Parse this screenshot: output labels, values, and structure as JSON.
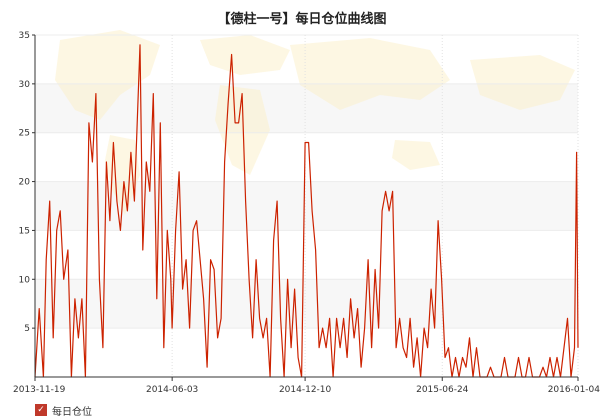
{
  "chart_data": {
    "type": "line",
    "title": "【德柱一号】每日仓位曲线图",
    "xlabel": "",
    "ylabel": "",
    "ylim": [
      0,
      35
    ],
    "y_ticks": [
      5,
      10,
      15,
      20,
      25,
      30,
      35
    ],
    "x_ticks": [
      "2013-11-19",
      "2014-06-03",
      "2014-12-10",
      "2015-06-24",
      "2016-01-04"
    ],
    "x_range": [
      "2013-11-19",
      "2016-01-04"
    ],
    "grid": true,
    "legend": "bottom-left",
    "series": [
      {
        "name": "每日仓位",
        "color": "#cc2200",
        "points": [
          [
            "2013-11-19",
            0
          ],
          [
            "2013-11-25",
            7
          ],
          [
            "2013-12-01",
            0
          ],
          [
            "2013-12-05",
            12
          ],
          [
            "2013-12-10",
            18
          ],
          [
            "2013-12-15",
            4
          ],
          [
            "2013-12-20",
            15
          ],
          [
            "2013-12-25",
            17
          ],
          [
            "2013-12-30",
            10
          ],
          [
            "2014-01-05",
            13
          ],
          [
            "2014-01-10",
            0
          ],
          [
            "2014-01-15",
            8
          ],
          [
            "2014-01-20",
            4
          ],
          [
            "2014-01-25",
            8
          ],
          [
            "2014-01-30",
            0
          ],
          [
            "2014-02-04",
            26
          ],
          [
            "2014-02-09",
            22
          ],
          [
            "2014-02-14",
            29
          ],
          [
            "2014-02-19",
            10
          ],
          [
            "2014-02-24",
            3
          ],
          [
            "2014-03-01",
            22
          ],
          [
            "2014-03-06",
            16
          ],
          [
            "2014-03-11",
            24
          ],
          [
            "2014-03-16",
            18
          ],
          [
            "2014-03-21",
            15
          ],
          [
            "2014-03-26",
            20
          ],
          [
            "2014-03-31",
            17
          ],
          [
            "2014-04-05",
            23
          ],
          [
            "2014-04-10",
            18
          ],
          [
            "2014-04-15",
            28
          ],
          [
            "2014-04-18",
            34
          ],
          [
            "2014-04-22",
            13
          ],
          [
            "2014-04-27",
            22
          ],
          [
            "2014-05-02",
            19
          ],
          [
            "2014-05-07",
            29
          ],
          [
            "2014-05-12",
            8
          ],
          [
            "2014-05-17",
            26
          ],
          [
            "2014-05-22",
            3
          ],
          [
            "2014-05-27",
            15
          ],
          [
            "2014-06-01",
            10
          ],
          [
            "2014-06-03",
            5
          ],
          [
            "2014-06-08",
            15
          ],
          [
            "2014-06-13",
            21
          ],
          [
            "2014-06-18",
            9
          ],
          [
            "2014-06-23",
            12
          ],
          [
            "2014-06-28",
            5
          ],
          [
            "2014-07-03",
            15
          ],
          [
            "2014-07-08",
            16
          ],
          [
            "2014-07-13",
            12
          ],
          [
            "2014-07-18",
            8
          ],
          [
            "2014-07-23",
            1
          ],
          [
            "2014-07-28",
            12
          ],
          [
            "2014-08-02",
            11
          ],
          [
            "2014-08-07",
            4
          ],
          [
            "2014-08-12",
            6
          ],
          [
            "2014-08-17",
            22
          ],
          [
            "2014-08-22",
            28
          ],
          [
            "2014-08-27",
            33
          ],
          [
            "2014-09-01",
            26
          ],
          [
            "2014-09-06",
            26
          ],
          [
            "2014-09-11",
            29
          ],
          [
            "2014-09-16",
            18
          ],
          [
            "2014-09-21",
            10
          ],
          [
            "2014-09-26",
            4
          ],
          [
            "2014-10-01",
            12
          ],
          [
            "2014-10-06",
            6
          ],
          [
            "2014-10-11",
            4
          ],
          [
            "2014-10-16",
            6
          ],
          [
            "2014-10-21",
            0
          ],
          [
            "2014-10-26",
            14
          ],
          [
            "2014-10-31",
            18
          ],
          [
            "2014-11-05",
            6
          ],
          [
            "2014-11-10",
            0
          ],
          [
            "2014-11-15",
            10
          ],
          [
            "2014-11-20",
            3
          ],
          [
            "2014-11-25",
            9
          ],
          [
            "2014-11-30",
            2
          ],
          [
            "2014-12-05",
            0
          ],
          [
            "2014-12-10",
            24
          ],
          [
            "2014-12-15",
            24
          ],
          [
            "2014-12-20",
            17
          ],
          [
            "2014-12-25",
            13
          ],
          [
            "2014-12-30",
            3
          ],
          [
            "2015-01-04",
            5
          ],
          [
            "2015-01-09",
            3
          ],
          [
            "2015-01-14",
            6
          ],
          [
            "2015-01-19",
            0
          ],
          [
            "2015-01-24",
            6
          ],
          [
            "2015-01-29",
            3
          ],
          [
            "2015-02-03",
            6
          ],
          [
            "2015-02-08",
            2
          ],
          [
            "2015-02-13",
            8
          ],
          [
            "2015-02-18",
            4
          ],
          [
            "2015-02-23",
            7
          ],
          [
            "2015-02-28",
            1
          ],
          [
            "2015-03-05",
            5
          ],
          [
            "2015-03-10",
            12
          ],
          [
            "2015-03-15",
            3
          ],
          [
            "2015-03-20",
            11
          ],
          [
            "2015-03-25",
            5
          ],
          [
            "2015-03-30",
            17
          ],
          [
            "2015-04-04",
            19
          ],
          [
            "2015-04-09",
            17
          ],
          [
            "2015-04-14",
            19
          ],
          [
            "2015-04-19",
            3
          ],
          [
            "2015-04-24",
            6
          ],
          [
            "2015-04-29",
            3
          ],
          [
            "2015-05-04",
            2
          ],
          [
            "2015-05-09",
            6
          ],
          [
            "2015-05-14",
            1
          ],
          [
            "2015-05-19",
            4
          ],
          [
            "2015-05-24",
            0
          ],
          [
            "2015-05-29",
            5
          ],
          [
            "2015-06-03",
            3
          ],
          [
            "2015-06-08",
            9
          ],
          [
            "2015-06-13",
            5
          ],
          [
            "2015-06-18",
            16
          ],
          [
            "2015-06-23",
            10
          ],
          [
            "2015-06-28",
            2
          ],
          [
            "2015-07-03",
            3
          ],
          [
            "2015-07-08",
            0
          ],
          [
            "2015-07-13",
            2
          ],
          [
            "2015-07-18",
            0
          ],
          [
            "2015-07-23",
            2
          ],
          [
            "2015-07-28",
            1
          ],
          [
            "2015-08-02",
            4
          ],
          [
            "2015-08-07",
            0
          ],
          [
            "2015-08-12",
            3
          ],
          [
            "2015-08-17",
            0
          ],
          [
            "2015-08-22",
            0
          ],
          [
            "2015-08-27",
            0
          ],
          [
            "2015-09-01",
            1
          ],
          [
            "2015-09-06",
            0
          ],
          [
            "2015-09-16",
            0
          ],
          [
            "2015-09-21",
            2
          ],
          [
            "2015-09-26",
            0
          ],
          [
            "2015-10-06",
            0
          ],
          [
            "2015-10-11",
            2
          ],
          [
            "2015-10-16",
            0
          ],
          [
            "2015-10-21",
            0
          ],
          [
            "2015-10-26",
            2
          ],
          [
            "2015-10-31",
            0
          ],
          [
            "2015-11-10",
            0
          ],
          [
            "2015-11-15",
            1
          ],
          [
            "2015-11-20",
            0
          ],
          [
            "2015-11-25",
            2
          ],
          [
            "2015-11-30",
            0
          ],
          [
            "2015-12-05",
            2
          ],
          [
            "2015-12-10",
            0
          ],
          [
            "2015-12-15",
            3
          ],
          [
            "2015-12-20",
            6
          ],
          [
            "2015-12-25",
            0
          ],
          [
            "2015-12-30",
            3
          ],
          [
            "2016-01-02",
            23
          ],
          [
            "2016-01-04",
            3
          ]
        ]
      }
    ]
  }
}
